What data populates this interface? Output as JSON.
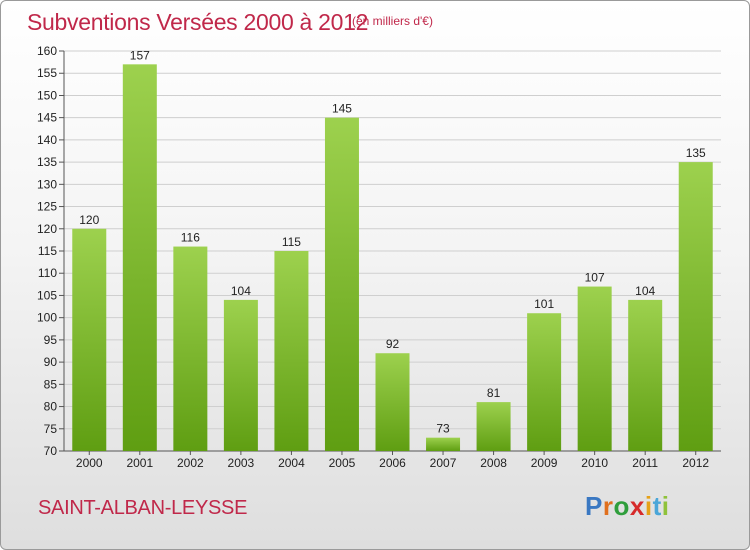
{
  "header": {
    "title": "Subventions Versées 2000 à 2012",
    "subtitle": "(en milliers d'€)"
  },
  "footer": {
    "commune": "SAINT-ALBAN-LEYSSE",
    "logo_letters": [
      "P",
      "r",
      "o",
      "x",
      "i",
      "t",
      "i"
    ]
  },
  "colors": {
    "bar_top": "#9dd14e",
    "bar_bottom": "#5f9e12",
    "grid": "#cfcfcf",
    "title": "#c0284a"
  },
  "chart_data": {
    "type": "bar",
    "categories": [
      "2000",
      "2001",
      "2002",
      "2003",
      "2004",
      "2005",
      "2006",
      "2007",
      "2008",
      "2009",
      "2010",
      "2011",
      "2012"
    ],
    "values": [
      120,
      157,
      116,
      104,
      115,
      145,
      92,
      73,
      81,
      101,
      107,
      104,
      135
    ],
    "ylim": [
      70,
      160
    ],
    "yticks": [
      70,
      75,
      80,
      85,
      90,
      95,
      100,
      105,
      110,
      115,
      120,
      125,
      130,
      135,
      140,
      145,
      150,
      155,
      160
    ],
    "grid": true,
    "legend": "none"
  }
}
